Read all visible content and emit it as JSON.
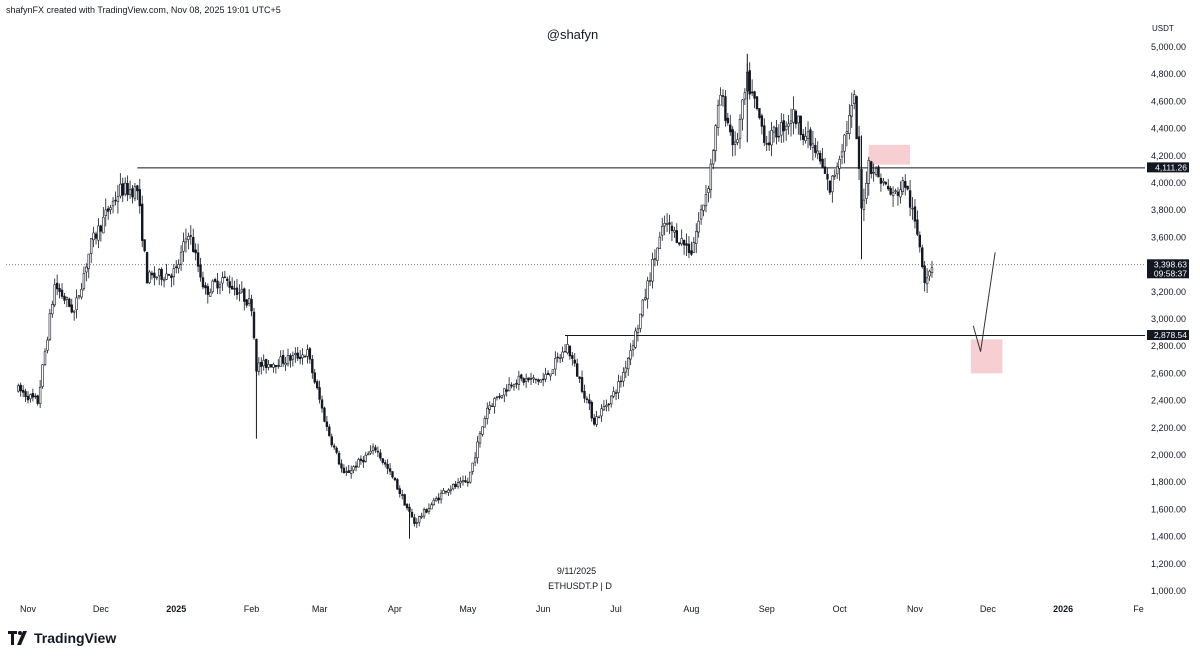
{
  "header": {
    "credit": "shafynFX created with TradingView.com, Nov 08, 2025 19:01 UTC+5"
  },
  "watermark": "@shafyn",
  "footer": {
    "date": "9/11/2025",
    "symbol": "ETHUSDT.P | D"
  },
  "brand": {
    "name": "TradingView"
  },
  "colors": {
    "up": "#131722",
    "down": "#131722",
    "zone": "#f6c7cb",
    "line": "#131722"
  },
  "chart_data": {
    "type": "candlestick",
    "unit": "USDT",
    "ylim": [
      1000,
      5000
    ],
    "y_ticks": [
      "1,000.00",
      "1,200.00",
      "1,400.00",
      "1,600.00",
      "1,800.00",
      "2,000.00",
      "2,200.00",
      "2,400.00",
      "2,600.00",
      "2,800.00",
      "3,000.00",
      "3,200.00",
      "3,400.00",
      "3,600.00",
      "3,800.00",
      "4,000.00",
      "4,200.00",
      "4,400.00",
      "4,600.00",
      "4,800.00",
      "5,000.00"
    ],
    "x_ticks": [
      {
        "label": "Nov",
        "date": "2024-11-01"
      },
      {
        "label": "Dec",
        "date": "2024-12-01"
      },
      {
        "label": "2025",
        "date": "2025-01-01",
        "bold": true
      },
      {
        "label": "Feb",
        "date": "2025-02-01"
      },
      {
        "label": "Mar",
        "date": "2025-03-01"
      },
      {
        "label": "Apr",
        "date": "2025-04-01"
      },
      {
        "label": "May",
        "date": "2025-05-01"
      },
      {
        "label": "Jun",
        "date": "2025-06-01"
      },
      {
        "label": "Jul",
        "date": "2025-07-01"
      },
      {
        "label": "Aug",
        "date": "2025-08-01"
      },
      {
        "label": "Sep",
        "date": "2025-09-01"
      },
      {
        "label": "Oct",
        "date": "2025-10-01"
      },
      {
        "label": "Nov",
        "date": "2025-11-01"
      },
      {
        "label": "Dec",
        "date": "2025-12-01"
      },
      {
        "label": "2026",
        "date": "2026-01-01",
        "bold": true
      },
      {
        "label": "Fe",
        "date": "2026-02-01"
      }
    ],
    "price_path": [
      [
        "2024-10-28",
        2480
      ],
      [
        "2024-11-05",
        2390
      ],
      [
        "2024-11-12",
        3250
      ],
      [
        "2024-11-20",
        3050
      ],
      [
        "2024-11-27",
        3550
      ],
      [
        "2024-12-04",
        3800
      ],
      [
        "2024-12-09",
        3950
      ],
      [
        "2024-12-16",
        3950
      ],
      [
        "2024-12-20",
        3300
      ],
      [
        "2025-01-01",
        3350
      ],
      [
        "2025-01-06",
        3650
      ],
      [
        "2025-01-13",
        3200
      ],
      [
        "2025-01-20",
        3300
      ],
      [
        "2025-01-27",
        3200
      ],
      [
        "2025-02-01",
        3100
      ],
      [
        "2025-02-03",
        2650
      ],
      [
        "2025-02-15",
        2700
      ],
      [
        "2025-02-24",
        2750
      ],
      [
        "2025-03-04",
        2200
      ],
      [
        "2025-03-11",
        1850
      ],
      [
        "2025-03-24",
        2050
      ],
      [
        "2025-04-01",
        1800
      ],
      [
        "2025-04-09",
        1500
      ],
      [
        "2025-04-22",
        1750
      ],
      [
        "2025-05-01",
        1800
      ],
      [
        "2025-05-09",
        2350
      ],
      [
        "2025-05-20",
        2550
      ],
      [
        "2025-06-01",
        2550
      ],
      [
        "2025-06-11",
        2800
      ],
      [
        "2025-06-22",
        2250
      ],
      [
        "2025-06-30",
        2450
      ],
      [
        "2025-07-03",
        2550
      ],
      [
        "2025-07-10",
        2950
      ],
      [
        "2025-07-16",
        3400
      ],
      [
        "2025-07-21",
        3700
      ],
      [
        "2025-08-01",
        3500
      ],
      [
        "2025-08-08",
        4000
      ],
      [
        "2025-08-13",
        4650
      ],
      [
        "2025-08-19",
        4250
      ],
      [
        "2025-08-24",
        4750
      ],
      [
        "2025-09-01",
        4300
      ],
      [
        "2025-09-12",
        4500
      ],
      [
        "2025-09-22",
        4200
      ],
      [
        "2025-09-27",
        3950
      ],
      [
        "2025-10-07",
        4600
      ],
      [
        "2025-10-10",
        3800
      ],
      [
        "2025-10-13",
        4150
      ],
      [
        "2025-10-23",
        3900
      ],
      [
        "2025-10-28",
        4000
      ],
      [
        "2025-11-03",
        3550
      ],
      [
        "2025-11-05",
        3300
      ],
      [
        "2025-11-08",
        3400
      ]
    ],
    "wicks": [
      {
        "date": "2025-02-03",
        "low": 2120,
        "high": 2800
      },
      {
        "date": "2025-10-10",
        "low": 3440,
        "high": 4350
      },
      {
        "date": "2025-04-07",
        "low": 1385,
        "high": 1620
      },
      {
        "date": "2025-08-24",
        "low": 4300,
        "high": 4950
      }
    ],
    "levels": [
      {
        "value": 4111.26,
        "label": "4,111.26",
        "from": "2024-12-16"
      },
      {
        "value": 2878.54,
        "label": "2,878.54",
        "from": "2025-06-10"
      }
    ],
    "current_price": {
      "value": 3398.63,
      "label": "3,398.63",
      "countdown": "09:58:37"
    },
    "zones": [
      {
        "from": "2025-10-13",
        "to": "2025-10-30",
        "low": 4135,
        "high": 4280
      },
      {
        "from": "2025-11-24",
        "to": "2025-12-07",
        "low": 2600,
        "high": 2850
      }
    ],
    "arrow": [
      [
        "2025-11-25",
        2950
      ],
      [
        "2025-11-28",
        2760
      ],
      [
        "2025-12-04",
        3490
      ]
    ]
  }
}
